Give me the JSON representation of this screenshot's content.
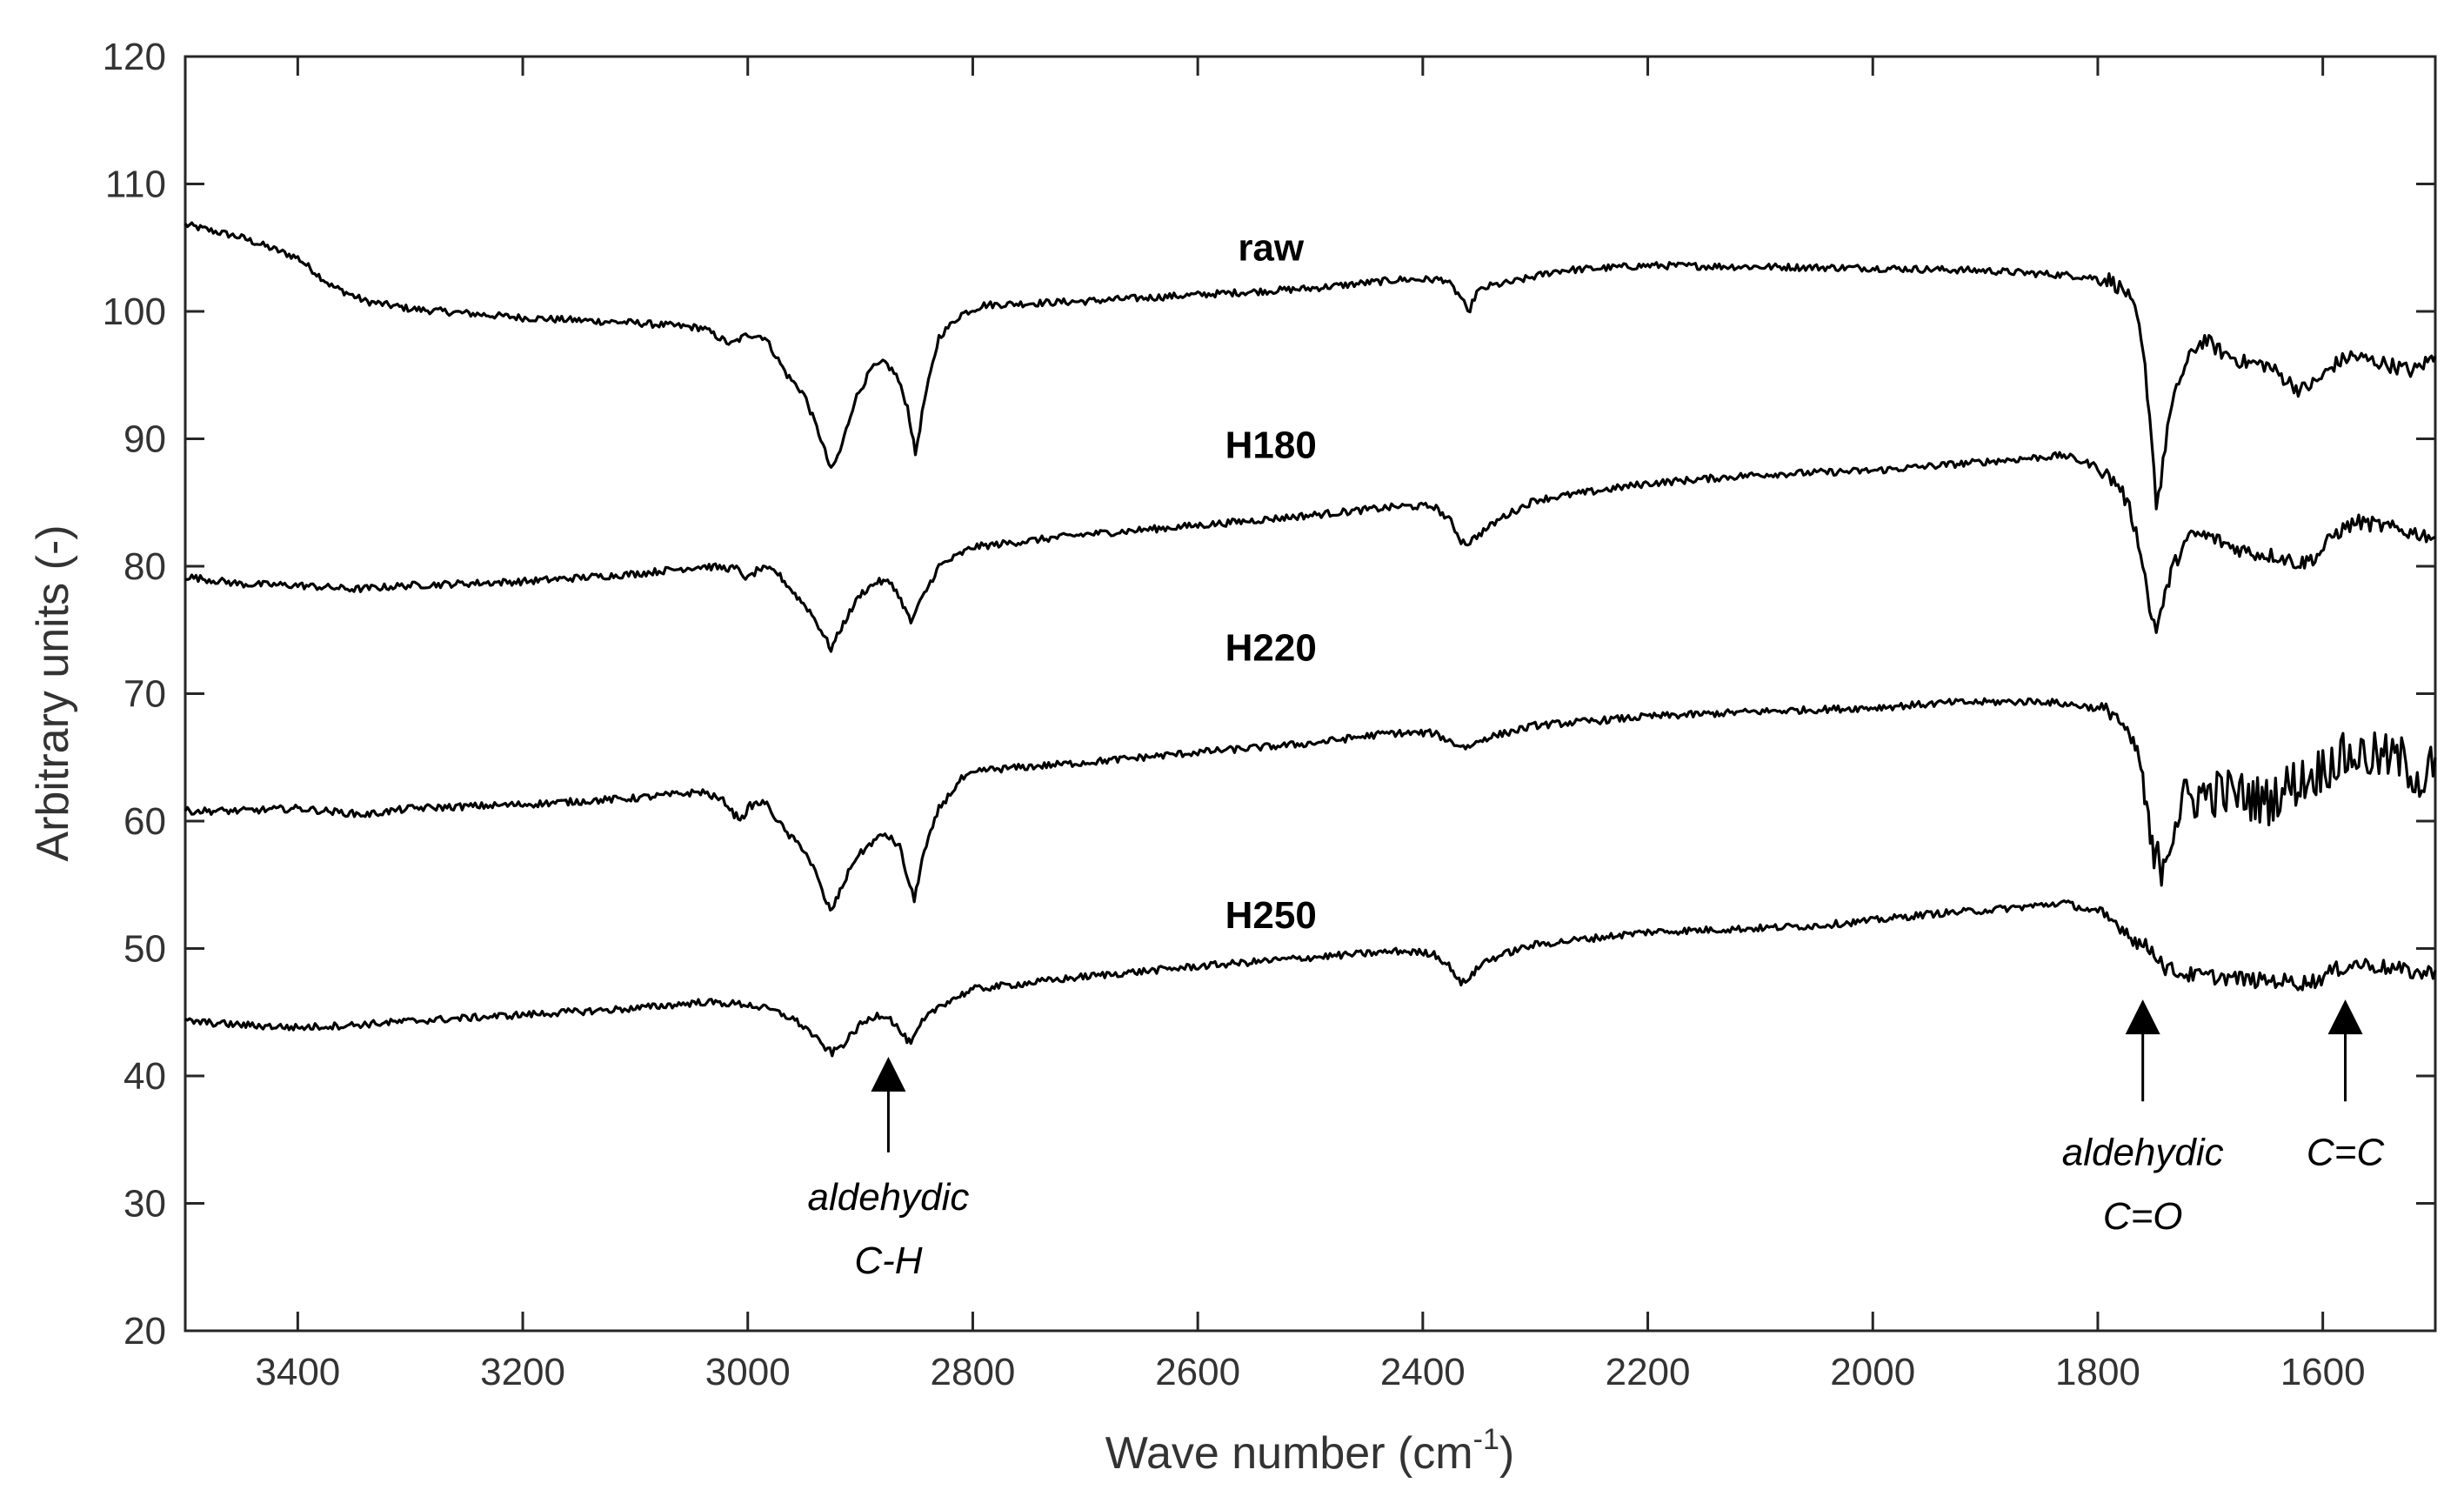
{
  "chart_data": {
    "type": "line",
    "title": "",
    "xlabel": "Wave number (cm",
    "xlabel_sup": "-1",
    "xlabel_end": ")",
    "ylabel": "Arbitrary units (-)",
    "xlim": [
      3500,
      1500
    ],
    "ylim": [
      20,
      120
    ],
    "x_ticks": [
      3400,
      3200,
      3000,
      2800,
      2600,
      2400,
      2200,
      2000,
      1800,
      1600
    ],
    "x_tick_labels": [
      "3400",
      "3200",
      "3000",
      "2800",
      "2600",
      "2400",
      "2200",
      "2000",
      "1800",
      "1600"
    ],
    "y_ticks": [
      20,
      30,
      40,
      50,
      60,
      70,
      80,
      90,
      100,
      110,
      120
    ],
    "y_tick_labels": [
      "20",
      "30",
      "40",
      "50",
      "60",
      "70",
      "80",
      "90",
      "100",
      "110",
      "120"
    ],
    "grid": false,
    "line_color": "#000000",
    "series": [
      {
        "name": "raw",
        "label_pos": [
          2535,
          104
        ],
        "noise": 0.55,
        "points": [
          [
            3500,
            106.8
          ],
          [
            3450,
            105.8
          ],
          [
            3400,
            104.2
          ],
          [
            3370,
            102.0
          ],
          [
            3340,
            100.8
          ],
          [
            3300,
            100.2
          ],
          [
            3200,
            99.5
          ],
          [
            3100,
            99.1
          ],
          [
            3040,
            98.7
          ],
          [
            3015,
            97.4
          ],
          [
            3000,
            98.2
          ],
          [
            2985,
            98.0
          ],
          [
            2965,
            95.0
          ],
          [
            2950,
            93.5
          ],
          [
            2935,
            90.0
          ],
          [
            2926,
            87.5
          ],
          [
            2918,
            89.0
          ],
          [
            2905,
            93.0
          ],
          [
            2890,
            95.5
          ],
          [
            2878,
            96.0
          ],
          [
            2868,
            95.0
          ],
          [
            2858,
            92.5
          ],
          [
            2851,
            88.8
          ],
          [
            2843,
            93.0
          ],
          [
            2830,
            98.0
          ],
          [
            2810,
            99.8
          ],
          [
            2790,
            100.5
          ],
          [
            2700,
            100.8
          ],
          [
            2600,
            101.3
          ],
          [
            2500,
            101.8
          ],
          [
            2420,
            102.5
          ],
          [
            2380,
            102.5
          ],
          [
            2365,
            101.0
          ],
          [
            2360,
            99.8
          ],
          [
            2352,
            101.5
          ],
          [
            2340,
            102.0
          ],
          [
            2320,
            102.3
          ],
          [
            2280,
            103.2
          ],
          [
            2200,
            103.6
          ],
          [
            2100,
            103.5
          ],
          [
            2000,
            103.4
          ],
          [
            1900,
            103.2
          ],
          [
            1820,
            102.8
          ],
          [
            1790,
            102.5
          ],
          [
            1775,
            101.5
          ],
          [
            1765,
            99.5
          ],
          [
            1758,
            95.5
          ],
          [
            1752,
            90.0
          ],
          [
            1748,
            85.0
          ],
          [
            1744,
            86.5
          ],
          [
            1738,
            91.0
          ],
          [
            1728,
            94.5
          ],
          [
            1715,
            97.0
          ],
          [
            1705,
            97.8
          ],
          [
            1690,
            96.8
          ],
          [
            1670,
            96.0
          ],
          [
            1650,
            95.8
          ],
          [
            1635,
            94.8
          ],
          [
            1620,
            93.8
          ],
          [
            1605,
            94.5
          ],
          [
            1590,
            95.8
          ],
          [
            1575,
            96.5
          ],
          [
            1560,
            96.2
          ],
          [
            1540,
            95.8
          ],
          [
            1520,
            95.3
          ],
          [
            1505,
            96.2
          ],
          [
            1500,
            96.5
          ]
        ]
      },
      {
        "name": "H180",
        "label_pos": [
          2535,
          88.5
        ],
        "noise": 0.55,
        "points": [
          [
            3500,
            79.2
          ],
          [
            3450,
            78.6
          ],
          [
            3400,
            78.5
          ],
          [
            3350,
            78.2
          ],
          [
            3300,
            78.5
          ],
          [
            3200,
            78.8
          ],
          [
            3100,
            79.4
          ],
          [
            3040,
            80.0
          ],
          [
            3010,
            79.8
          ],
          [
            3000,
            79.0
          ],
          [
            2990,
            79.8
          ],
          [
            2975,
            79.6
          ],
          [
            2958,
            77.8
          ],
          [
            2945,
            76.5
          ],
          [
            2935,
            75.0
          ],
          [
            2926,
            73.5
          ],
          [
            2915,
            75.5
          ],
          [
            2900,
            77.8
          ],
          [
            2885,
            78.8
          ],
          [
            2872,
            78.7
          ],
          [
            2862,
            77.0
          ],
          [
            2855,
            75.6
          ],
          [
            2845,
            77.5
          ],
          [
            2830,
            80.0
          ],
          [
            2800,
            81.5
          ],
          [
            2700,
            82.5
          ],
          [
            2600,
            83.2
          ],
          [
            2500,
            84.0
          ],
          [
            2420,
            84.7
          ],
          [
            2390,
            84.7
          ],
          [
            2375,
            83.5
          ],
          [
            2366,
            82.0
          ],
          [
            2360,
            81.8
          ],
          [
            2350,
            82.5
          ],
          [
            2330,
            83.8
          ],
          [
            2300,
            85.2
          ],
          [
            2200,
            86.5
          ],
          [
            2100,
            87.2
          ],
          [
            2000,
            87.5
          ],
          [
            1900,
            88.2
          ],
          [
            1830,
            88.7
          ],
          [
            1800,
            87.8
          ],
          [
            1780,
            86.2
          ],
          [
            1770,
            84.0
          ],
          [
            1760,
            80.5
          ],
          [
            1754,
            76.5
          ],
          [
            1748,
            75.2
          ],
          [
            1742,
            77.0
          ],
          [
            1735,
            79.5
          ],
          [
            1725,
            81.5
          ],
          [
            1715,
            82.5
          ],
          [
            1700,
            82.3
          ],
          [
            1680,
            81.5
          ],
          [
            1660,
            81.0
          ],
          [
            1640,
            80.8
          ],
          [
            1620,
            80.2
          ],
          [
            1605,
            80.8
          ],
          [
            1590,
            82.5
          ],
          [
            1570,
            83.5
          ],
          [
            1550,
            83.2
          ],
          [
            1530,
            82.8
          ],
          [
            1510,
            82.5
          ],
          [
            1500,
            82.3
          ]
        ]
      },
      {
        "name": "H220",
        "label_pos": [
          2535,
          72.6
        ],
        "noise": 0.55,
        "points": [
          [
            3500,
            60.8
          ],
          [
            3450,
            60.8
          ],
          [
            3400,
            61.0
          ],
          [
            3340,
            60.5
          ],
          [
            3300,
            61.0
          ],
          [
            3200,
            61.3
          ],
          [
            3100,
            61.8
          ],
          [
            3040,
            62.3
          ],
          [
            3020,
            61.5
          ],
          [
            3012,
            60.5
          ],
          [
            3005,
            60.2
          ],
          [
            2998,
            61.2
          ],
          [
            2985,
            61.5
          ],
          [
            2965,
            59.0
          ],
          [
            2950,
            57.8
          ],
          [
            2940,
            56.0
          ],
          [
            2930,
            53.5
          ],
          [
            2925,
            53.0
          ],
          [
            2918,
            54.5
          ],
          [
            2905,
            57.0
          ],
          [
            2890,
            58.3
          ],
          [
            2878,
            59.0
          ],
          [
            2865,
            58.0
          ],
          [
            2858,
            55.5
          ],
          [
            2852,
            53.8
          ],
          [
            2845,
            57.0
          ],
          [
            2830,
            61.0
          ],
          [
            2810,
            63.3
          ],
          [
            2790,
            64.0
          ],
          [
            2700,
            64.6
          ],
          [
            2600,
            65.4
          ],
          [
            2500,
            66.1
          ],
          [
            2430,
            66.9
          ],
          [
            2390,
            66.9
          ],
          [
            2370,
            66.0
          ],
          [
            2360,
            65.8
          ],
          [
            2345,
            66.5
          ],
          [
            2300,
            67.5
          ],
          [
            2200,
            68.2
          ],
          [
            2100,
            68.6
          ],
          [
            2000,
            68.9
          ],
          [
            1930,
            69.3
          ],
          [
            1850,
            69.4
          ],
          [
            1810,
            69.0
          ],
          [
            1785,
            68.5
          ],
          [
            1772,
            66.5
          ],
          [
            1765,
            65.5
          ],
          [
            1760,
            63.5
          ],
          [
            1755,
            59.0
          ],
          [
            1750,
            57.0
          ],
          [
            1745,
            56.5
          ],
          [
            1740,
            57.5
          ],
          [
            1733,
            59.5
          ],
          [
            1725,
            61.5
          ],
          [
            1710,
            62.0
          ],
          [
            1690,
            62.3
          ],
          [
            1670,
            62.0
          ],
          [
            1650,
            61.5
          ],
          [
            1630,
            62.8
          ],
          [
            1610,
            63.5
          ],
          [
            1590,
            64.8
          ],
          [
            1570,
            65.2
          ],
          [
            1550,
            65.0
          ],
          [
            1530,
            64.8
          ],
          [
            1510,
            63.0
          ],
          [
            1500,
            65.0
          ]
        ]
      },
      {
        "name": "H250",
        "label_pos": [
          2535,
          51.6
        ],
        "noise": 0.55,
        "points": [
          [
            3500,
            44.3
          ],
          [
            3450,
            44.0
          ],
          [
            3400,
            43.8
          ],
          [
            3350,
            44.0
          ],
          [
            3300,
            44.3
          ],
          [
            3200,
            44.8
          ],
          [
            3100,
            45.3
          ],
          [
            3040,
            45.8
          ],
          [
            3000,
            45.6
          ],
          [
            2980,
            45.2
          ],
          [
            2960,
            44.5
          ],
          [
            2945,
            43.5
          ],
          [
            2935,
            42.5
          ],
          [
            2925,
            41.8
          ],
          [
            2915,
            42.5
          ],
          [
            2900,
            44.0
          ],
          [
            2885,
            44.8
          ],
          [
            2875,
            44.7
          ],
          [
            2862,
            43.2
          ],
          [
            2855,
            42.5
          ],
          [
            2845,
            44.2
          ],
          [
            2830,
            45.5
          ],
          [
            2800,
            46.8
          ],
          [
            2700,
            47.8
          ],
          [
            2600,
            48.6
          ],
          [
            2500,
            49.3
          ],
          [
            2420,
            49.8
          ],
          [
            2390,
            49.6
          ],
          [
            2375,
            48.5
          ],
          [
            2366,
            47.2
          ],
          [
            2358,
            47.8
          ],
          [
            2345,
            49.0
          ],
          [
            2320,
            49.8
          ],
          [
            2300,
            50.3
          ],
          [
            2200,
            51.3
          ],
          [
            2100,
            51.6
          ],
          [
            2050,
            51.8
          ],
          [
            2000,
            52.2
          ],
          [
            1950,
            52.7
          ],
          [
            1900,
            53.0
          ],
          [
            1850,
            53.4
          ],
          [
            1830,
            53.6
          ],
          [
            1800,
            52.8
          ],
          [
            1780,
            51.8
          ],
          [
            1765,
            50.5
          ],
          [
            1750,
            49.8
          ],
          [
            1740,
            48.5
          ],
          [
            1725,
            48.0
          ],
          [
            1700,
            47.8
          ],
          [
            1680,
            47.7
          ],
          [
            1660,
            47.5
          ],
          [
            1640,
            47.5
          ],
          [
            1620,
            47.3
          ],
          [
            1605,
            47.5
          ],
          [
            1590,
            48.3
          ],
          [
            1570,
            48.8
          ],
          [
            1550,
            48.6
          ],
          [
            1530,
            48.3
          ],
          [
            1510,
            48.0
          ],
          [
            1500,
            48.3
          ]
        ]
      }
    ],
    "annotations": [
      {
        "name": "aldehydic-ch-annotation",
        "x": 2875,
        "tip_y": 41.5,
        "tail_y": 34.0,
        "label_lines": [
          "aldehydic",
          "C-H"
        ],
        "label_y": [
          29.5,
          24.5
        ]
      },
      {
        "name": "aldehydic-co-annotation",
        "x": 1760,
        "tip_y": 46.0,
        "tail_y": 38.0,
        "label_lines": [
          "aldehydic",
          "C=O"
        ],
        "label_y": [
          33.0,
          28.0
        ]
      },
      {
        "name": "cc-annotation",
        "x": 1580,
        "tip_y": 46.0,
        "tail_y": 38.0,
        "label_lines": [
          "C=C"
        ],
        "label_y": [
          33.0
        ]
      }
    ]
  }
}
